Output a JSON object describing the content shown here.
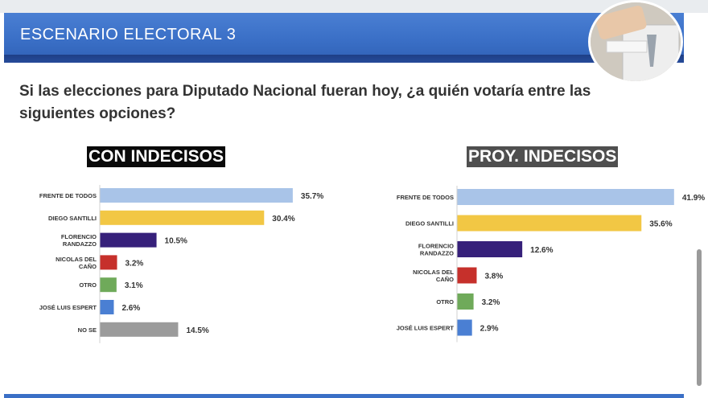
{
  "header": {
    "title": "ESCENARIO ELECTORAL 3"
  },
  "question": "Si las elecciones para Diputado Nacional fueran hoy, ¿a quién votaría entre las siguientes opciones?",
  "colors": {
    "frente_de_todos": "#a9c4e8",
    "santilli": "#f2c744",
    "randazzo": "#36207a",
    "del_cano": "#c6302b",
    "otro": "#6faa5a",
    "espert": "#4a7fd3",
    "no_se": "#9b9b9b"
  },
  "chart_data": [
    {
      "type": "bar",
      "orientation": "horizontal",
      "title": "CON INDECISOS",
      "categories": [
        [
          "FRENTE DE TODOS"
        ],
        [
          "DIEGO SANTILLI"
        ],
        [
          "FLORENCIO",
          "RANDAZZO"
        ],
        [
          "NICOLAS DEL",
          "CAÑO"
        ],
        [
          "OTRO"
        ],
        [
          "JOSÉ LUIS ESPERT"
        ],
        [
          "NO SE"
        ]
      ],
      "values": [
        35.7,
        30.4,
        10.5,
        3.2,
        3.1,
        2.6,
        14.5
      ],
      "labels": [
        "35.7%",
        "30.4%",
        "10.5%",
        "3.2%",
        "3.1%",
        "2.6%",
        "14.5%"
      ],
      "colors": [
        "#a9c4e8",
        "#f2c744",
        "#36207a",
        "#c6302b",
        "#6faa5a",
        "#4a7fd3",
        "#9b9b9b"
      ],
      "xlim": [
        0,
        40
      ],
      "grid": false
    },
    {
      "type": "bar",
      "orientation": "horizontal",
      "title": "PROY. INDECISOS",
      "categories": [
        [
          "FRENTE DE TODOS"
        ],
        [
          "DIEGO SANTILLI"
        ],
        [
          "FLORENCIO",
          "RANDAZZO"
        ],
        [
          "NICOLAS DEL",
          "CAÑO"
        ],
        [
          "OTRO"
        ],
        [
          "JOSÉ LUIS ESPERT"
        ]
      ],
      "values": [
        41.9,
        35.6,
        12.6,
        3.8,
        3.2,
        2.9
      ],
      "labels": [
        "41.9%",
        "35.6%",
        "12.6%",
        "3.8%",
        "3.2%",
        "2.9%"
      ],
      "colors": [
        "#a9c4e8",
        "#f2c744",
        "#36207a",
        "#c6302b",
        "#6faa5a",
        "#4a7fd3"
      ],
      "xlim": [
        0,
        45
      ],
      "grid": false
    }
  ]
}
